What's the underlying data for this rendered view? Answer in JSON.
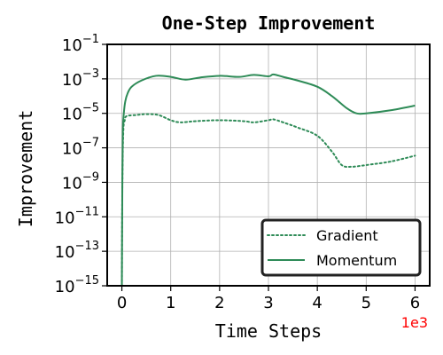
{
  "chart_data": {
    "type": "line",
    "title": "One-Step Improvement",
    "xlabel": "Time Steps",
    "ylabel": "Improvement",
    "x_offset_label": "1e3",
    "xlim": [
      -0.3,
      6.3
    ],
    "ylim_log10": [
      -15,
      -1
    ],
    "y_scale": "log",
    "grid": true,
    "legend_position": "lower-right",
    "x_ticks": [
      0,
      1,
      2,
      3,
      4,
      5,
      6
    ],
    "x_tick_labels": [
      "0",
      "1",
      "2",
      "3",
      "4",
      "5",
      "6"
    ],
    "y_ticks_log10": [
      -15,
      -13,
      -11,
      -9,
      -7,
      -5,
      -3,
      -1
    ],
    "y_tick_labels": [
      {
        "base": "10",
        "exp": "−15"
      },
      {
        "base": "10",
        "exp": "−13"
      },
      {
        "base": "10",
        "exp": "−11"
      },
      {
        "base": "10",
        "exp": "−9"
      },
      {
        "base": "10",
        "exp": "−7"
      },
      {
        "base": "10",
        "exp": "−5"
      },
      {
        "base": "10",
        "exp": "−3"
      },
      {
        "base": "10",
        "exp": "−1"
      }
    ],
    "series": [
      {
        "name": "Gradient",
        "style": "dotted",
        "color": "#2e8b57",
        "x": [
          0.0,
          0.01,
          0.03,
          0.06,
          0.1,
          0.3,
          0.5,
          0.75,
          1.0,
          1.2,
          1.5,
          2.0,
          2.5,
          2.7,
          3.0,
          3.1,
          3.3,
          3.6,
          4.0,
          4.3,
          4.5,
          4.7,
          5.0,
          5.5,
          6.0
        ],
        "y": [
          1e-15,
          1e-09,
          1e-06,
          4e-06,
          7e-06,
          8e-06,
          9e-06,
          8e-06,
          4e-06,
          3e-06,
          3.5e-06,
          4e-06,
          3.5e-06,
          3e-06,
          4e-06,
          4.5e-06,
          3e-06,
          1.5e-06,
          5e-07,
          6e-08,
          1e-08,
          8e-09,
          1e-08,
          1.6e-08,
          3.5e-08
        ]
      },
      {
        "name": "Momentum",
        "style": "solid",
        "color": "#2e8b57",
        "x": [
          0.0,
          0.01,
          0.02,
          0.04,
          0.07,
          0.12,
          0.2,
          0.4,
          0.7,
          1.0,
          1.3,
          1.6,
          2.0,
          2.4,
          2.7,
          3.0,
          3.1,
          3.3,
          3.6,
          4.0,
          4.3,
          4.6,
          4.8,
          5.0,
          5.5,
          6.0
        ],
        "y": [
          1e-15,
          1e-09,
          1e-06,
          1e-05,
          5e-05,
          0.00015,
          0.00035,
          0.0008,
          0.0015,
          0.0013,
          0.0009,
          0.0012,
          0.0015,
          0.0013,
          0.0017,
          0.0014,
          0.0018,
          0.0013,
          0.0008,
          0.00035,
          0.0001,
          2e-05,
          1e-05,
          1e-05,
          1.5e-05,
          2.8e-05
        ]
      }
    ]
  }
}
